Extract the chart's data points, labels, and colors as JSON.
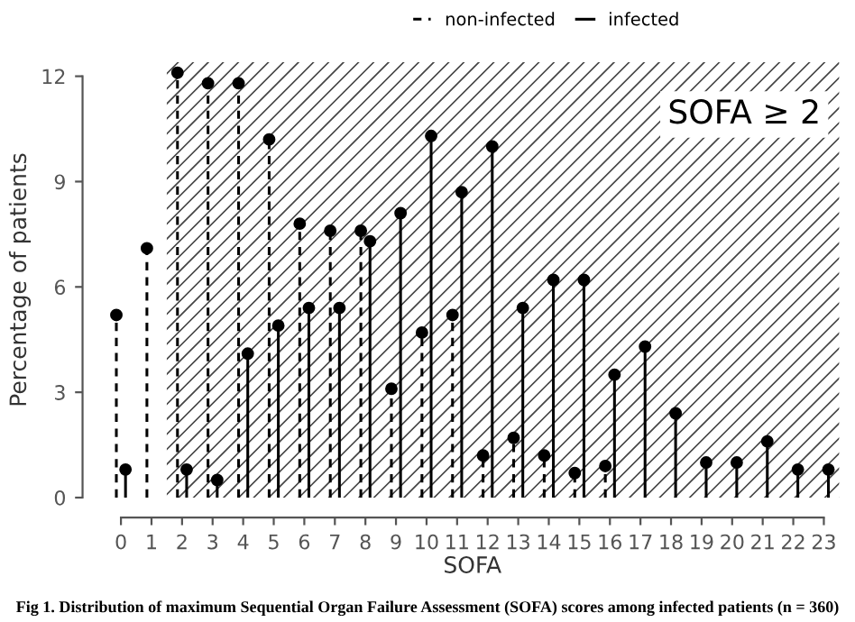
{
  "chart_data": {
    "type": "lollipop",
    "categories": [
      "0",
      "1",
      "2",
      "3",
      "4",
      "5",
      "6",
      "7",
      "8",
      "9",
      "10",
      "11",
      "12",
      "13",
      "14",
      "15",
      "16",
      "17",
      "18",
      "19",
      "20",
      "21",
      "22",
      "23"
    ],
    "series": [
      {
        "name": "non-infected",
        "color": "#000000",
        "line_style": "dashed",
        "values": [
          5.2,
          7.1,
          12.1,
          11.8,
          11.8,
          10.2,
          7.8,
          7.6,
          7.6,
          3.1,
          4.7,
          5.2,
          1.2,
          1.7,
          1.2,
          0.7,
          0.9,
          null,
          null,
          null,
          null,
          null,
          null,
          null
        ]
      },
      {
        "name": "infected",
        "color": "#000000",
        "line_style": "solid",
        "values": [
          0.8,
          null,
          0.8,
          0.5,
          4.1,
          4.9,
          5.4,
          5.4,
          7.3,
          8.1,
          10.3,
          8.7,
          10.0,
          5.4,
          6.2,
          6.2,
          3.5,
          4.3,
          2.4,
          1.0,
          1.0,
          1.6,
          0.8,
          0.8
        ]
      }
    ],
    "xlabel": "SOFA",
    "ylabel": "Percentage of patients",
    "ylim": [
      0,
      12.4
    ],
    "yticks": [
      0,
      3,
      6,
      9,
      12
    ],
    "bands": [
      {
        "axis": "x",
        "from": "2",
        "to": "23",
        "label": "SOFA ≥ 2",
        "color": "#444444"
      }
    ],
    "marker": "circle",
    "grid": false,
    "legend": "top",
    "annotations": [
      "Fig 1. Distribution of maximum Sequential Organ Failure Assessment (SOFA) scores among infected patients (n = 360)"
    ]
  }
}
